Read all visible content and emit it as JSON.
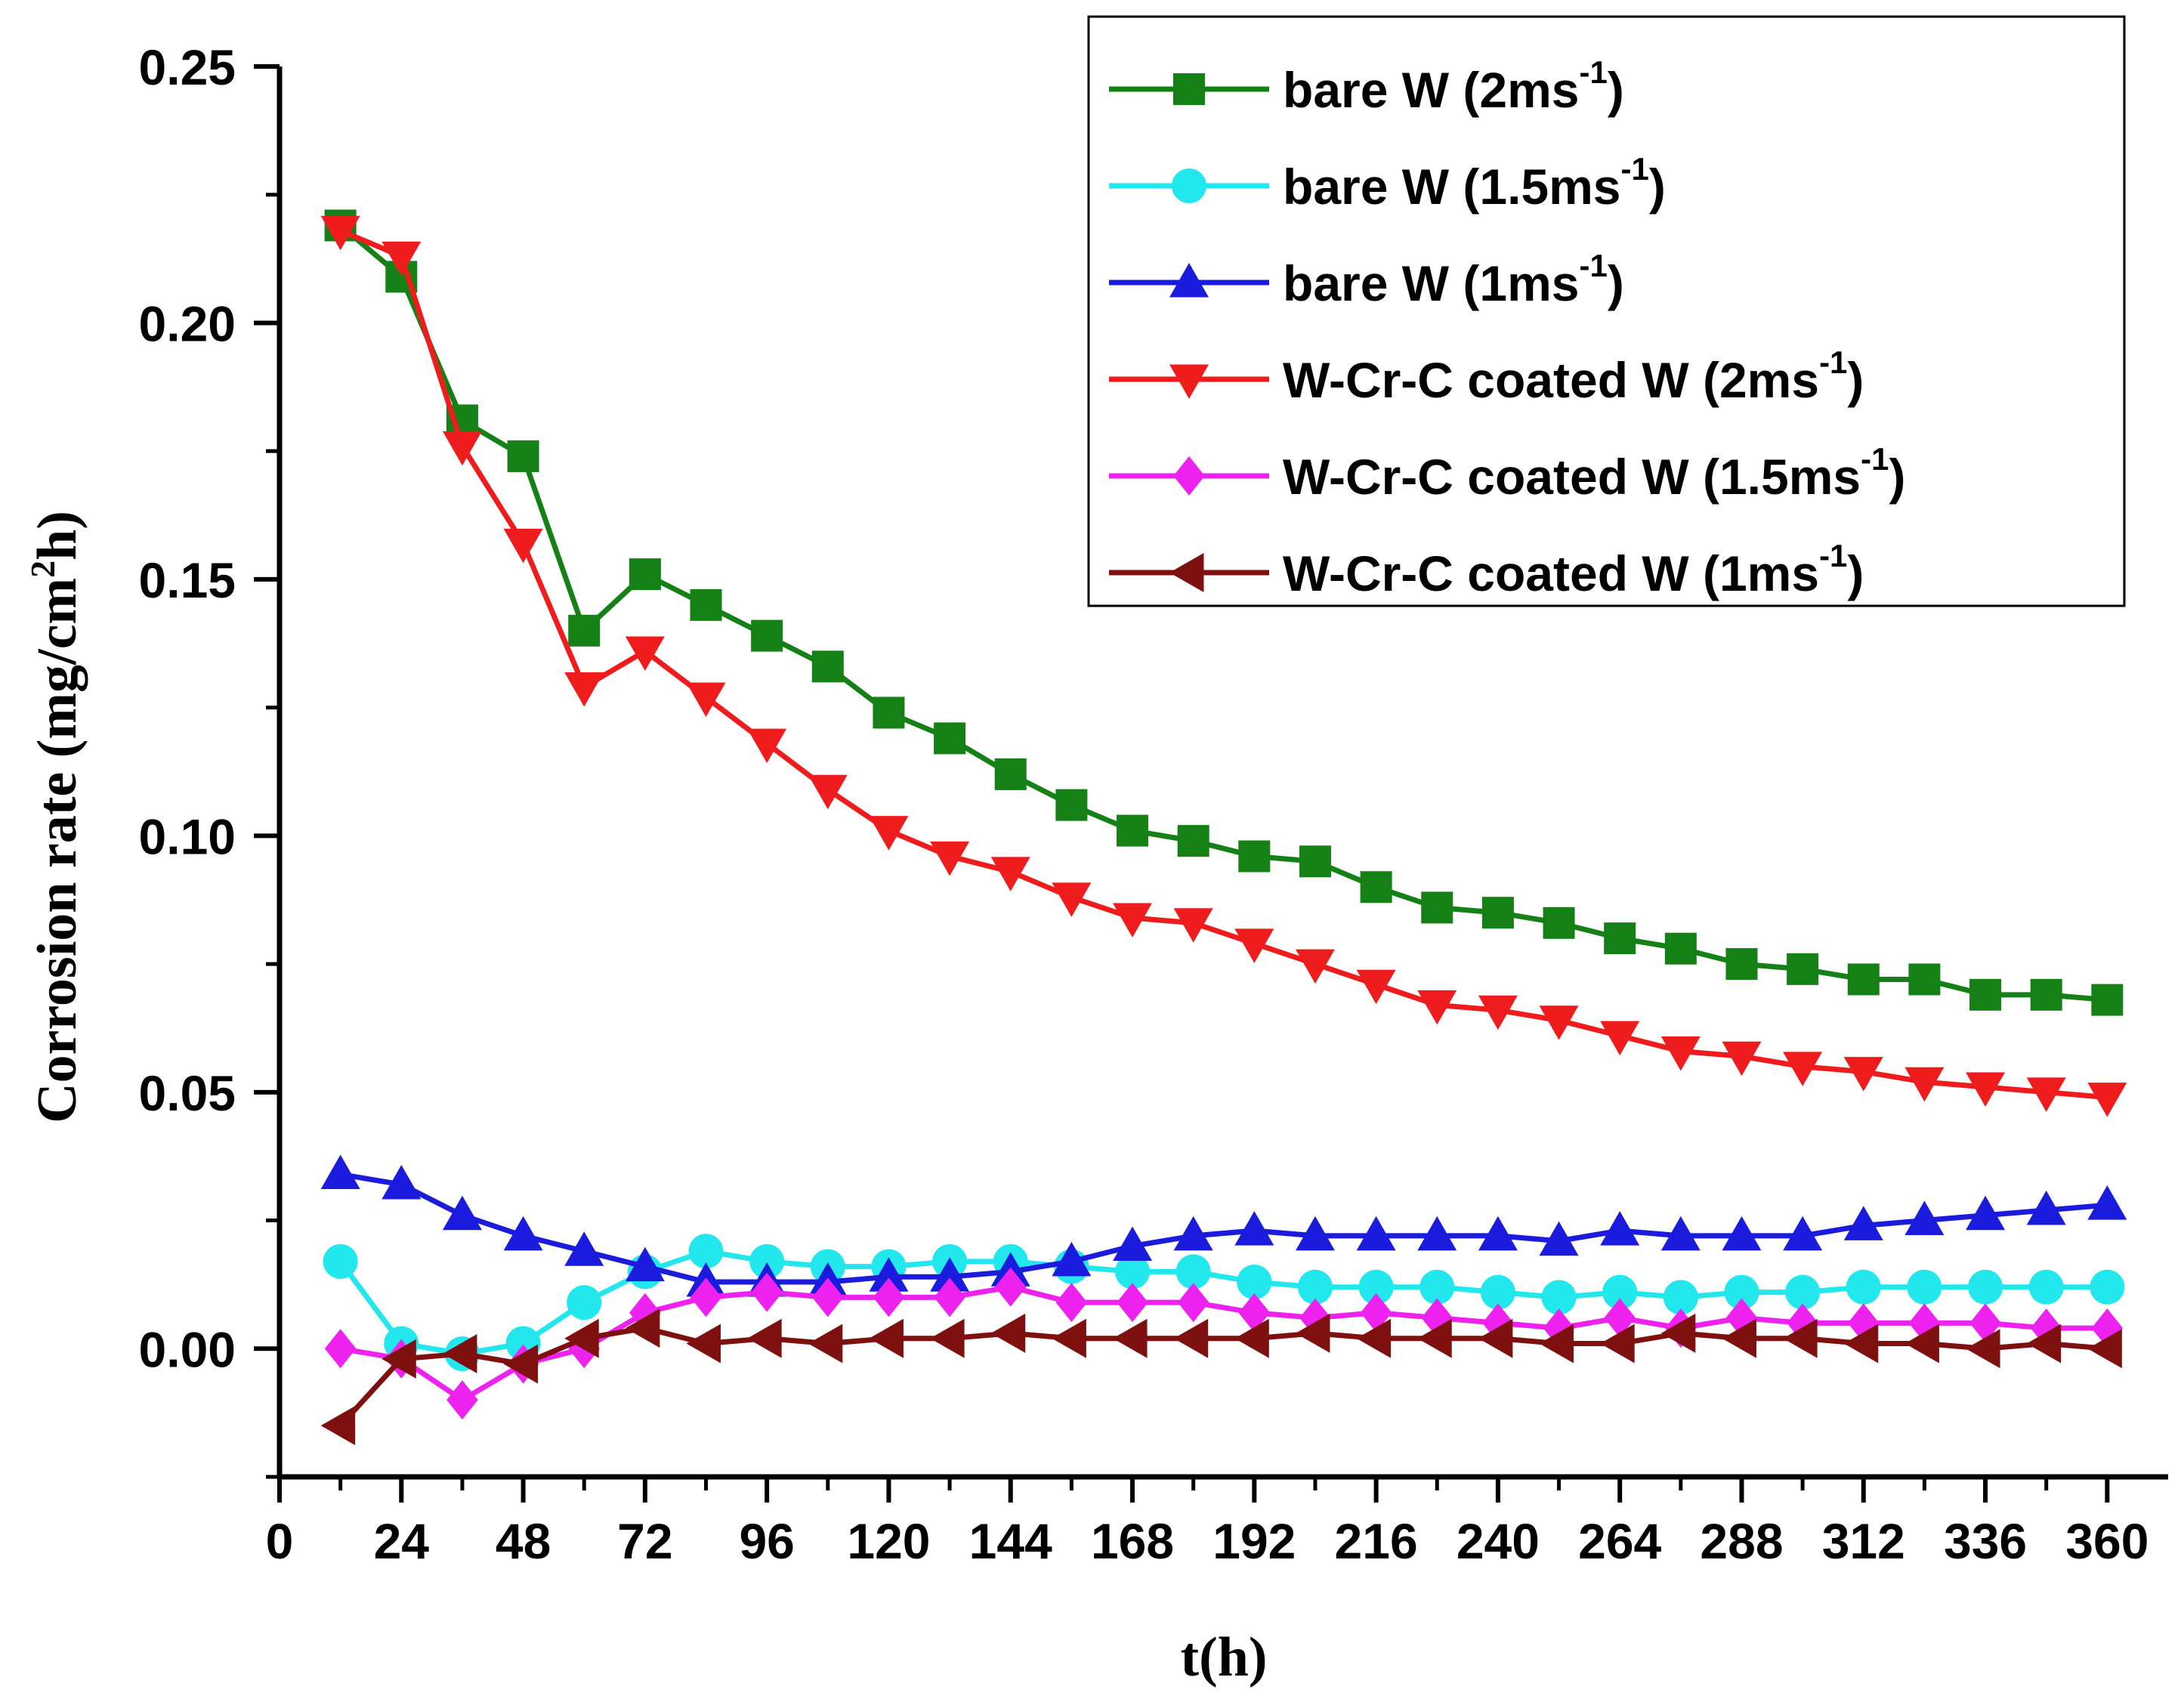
{
  "chart_data": {
    "type": "line",
    "title": "",
    "xlabel": "t(h)",
    "ylabel_parts": {
      "before": "Corrosion rate (mg/cm",
      "sup": "2",
      "after": "h)"
    },
    "xlim": [
      0,
      372
    ],
    "ylim": [
      -0.025,
      0.25
    ],
    "xticks": [
      0,
      24,
      48,
      72,
      96,
      120,
      144,
      168,
      192,
      216,
      240,
      264,
      288,
      312,
      336,
      360
    ],
    "yticks": [
      0.0,
      0.05,
      0.1,
      0.15,
      0.2,
      0.25
    ],
    "ytick_labels": [
      "0.00",
      "0.05",
      "0.10",
      "0.15",
      "0.20",
      "0.25"
    ],
    "legend_position": "top-right",
    "x": [
      12,
      24,
      36,
      48,
      60,
      72,
      84,
      96,
      108,
      120,
      132,
      144,
      156,
      168,
      180,
      192,
      204,
      216,
      228,
      240,
      252,
      264,
      276,
      288,
      300,
      312,
      324,
      336,
      348,
      360
    ],
    "series": [
      {
        "name_main": "bare W (2ms",
        "name_sup": "-1",
        "name_end": ")",
        "color": "#158015",
        "marker": "square",
        "values": [
          0.219,
          0.209,
          0.181,
          0.174,
          0.14,
          0.151,
          0.145,
          0.139,
          0.133,
          0.124,
          0.119,
          0.112,
          0.106,
          0.101,
          0.099,
          0.096,
          0.095,
          0.09,
          0.086,
          0.085,
          0.083,
          0.08,
          0.078,
          0.075,
          0.074,
          0.072,
          0.072,
          0.069,
          0.069,
          0.068
        ]
      },
      {
        "name_main": "bare W (1.5ms",
        "name_sup": "-1",
        "name_end": ")",
        "color": "#22e8ee",
        "marker": "circle",
        "values": [
          0.017,
          0.001,
          -0.001,
          0.001,
          0.009,
          0.015,
          0.019,
          0.017,
          0.016,
          0.016,
          0.017,
          0.017,
          0.016,
          0.015,
          0.015,
          0.013,
          0.012,
          0.012,
          0.012,
          0.011,
          0.01,
          0.011,
          0.01,
          0.011,
          0.011,
          0.012,
          0.012,
          0.012,
          0.012,
          0.012
        ]
      },
      {
        "name_main": "bare W (1ms",
        "name_sup": "-1",
        "name_end": ")",
        "color": "#1b1bdd",
        "marker": "triangle-up",
        "values": [
          0.034,
          0.032,
          0.026,
          0.022,
          0.019,
          0.016,
          0.013,
          0.013,
          0.013,
          0.014,
          0.014,
          0.015,
          0.017,
          0.02,
          0.022,
          0.023,
          0.022,
          0.022,
          0.022,
          0.022,
          0.021,
          0.023,
          0.022,
          0.022,
          0.022,
          0.024,
          0.025,
          0.026,
          0.027,
          0.028
        ]
      },
      {
        "name_main": "W-Cr-C coated W (2ms",
        "name_sup": "-1",
        "name_end": ")",
        "color": "#ee1c1c",
        "marker": "triangle-down",
        "values": [
          0.218,
          0.213,
          0.176,
          0.157,
          0.129,
          0.136,
          0.127,
          0.118,
          0.109,
          0.101,
          0.096,
          0.093,
          0.088,
          0.084,
          0.083,
          0.079,
          0.075,
          0.071,
          0.067,
          0.066,
          0.064,
          0.061,
          0.058,
          0.057,
          0.055,
          0.054,
          0.052,
          0.051,
          0.05,
          0.049
        ]
      },
      {
        "name_main": "W-Cr-C coated W (1.5ms",
        "name_sup": "-1",
        "name_end": ")",
        "color": "#ee22ee",
        "marker": "diamond",
        "values": [
          0.0,
          -0.002,
          -0.01,
          -0.003,
          0.0,
          0.007,
          0.01,
          0.011,
          0.01,
          0.01,
          0.01,
          0.012,
          0.009,
          0.009,
          0.009,
          0.007,
          0.006,
          0.007,
          0.006,
          0.005,
          0.004,
          0.006,
          0.004,
          0.006,
          0.005,
          0.005,
          0.005,
          0.005,
          0.004,
          0.004
        ]
      },
      {
        "name_main": "W-Cr-C coated W (1ms",
        "name_sup": "-1",
        "name_end": ")",
        "color": "#7f1010",
        "marker": "triangle-left",
        "values": [
          -0.015,
          -0.002,
          -0.001,
          -0.003,
          0.002,
          0.004,
          0.001,
          0.002,
          0.001,
          0.002,
          0.002,
          0.003,
          0.002,
          0.002,
          0.002,
          0.002,
          0.003,
          0.002,
          0.002,
          0.002,
          0.001,
          0.001,
          0.003,
          0.002,
          0.002,
          0.001,
          0.001,
          0.0,
          0.001,
          0.0
        ]
      }
    ]
  }
}
